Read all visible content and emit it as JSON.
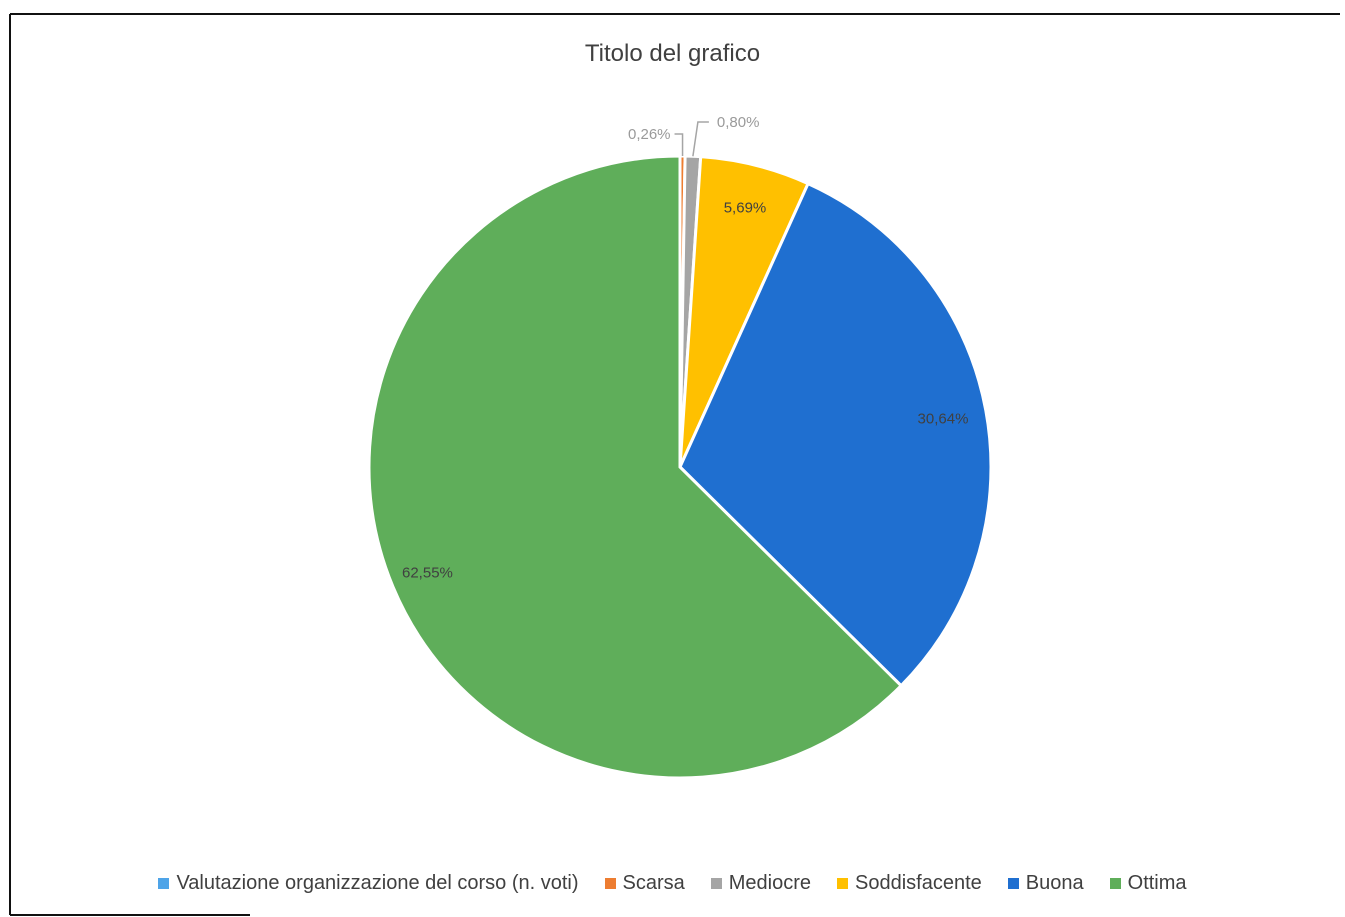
{
  "chart_data": {
    "type": "pie",
    "title": "Titolo del grafico",
    "series_name": "Valutazione organizzazione del corso (n. voti)",
    "slices": [
      {
        "label": "Scarsa",
        "percent": 0.26,
        "display": "0,26%",
        "color": "#ED7D31"
      },
      {
        "label": "Mediocre",
        "percent": 0.8,
        "display": "0,80%",
        "color": "#A5A5A5"
      },
      {
        "label": "Soddisfacente",
        "percent": 5.69,
        "display": "5,69%",
        "color": "#FFC000"
      },
      {
        "label": "Buona",
        "percent": 30.64,
        "display": "30,64%",
        "color": "#1F6FD0"
      },
      {
        "label": "Ottima",
        "percent": 62.55,
        "display": "62,55%",
        "color": "#5FAE5A"
      }
    ],
    "legend": [
      {
        "label": "Valutazione organizzazione del corso (n. voti)",
        "color": "#4EA4E8"
      },
      {
        "label": "Scarsa",
        "color": "#ED7D31"
      },
      {
        "label": "Mediocre",
        "color": "#A5A5A5"
      },
      {
        "label": "Soddisfacente",
        "color": "#FFC000"
      },
      {
        "label": "Buona",
        "color": "#1F6FD0"
      },
      {
        "label": "Ottima",
        "color": "#5FAE5A"
      }
    ],
    "legend_position": "bottom"
  }
}
